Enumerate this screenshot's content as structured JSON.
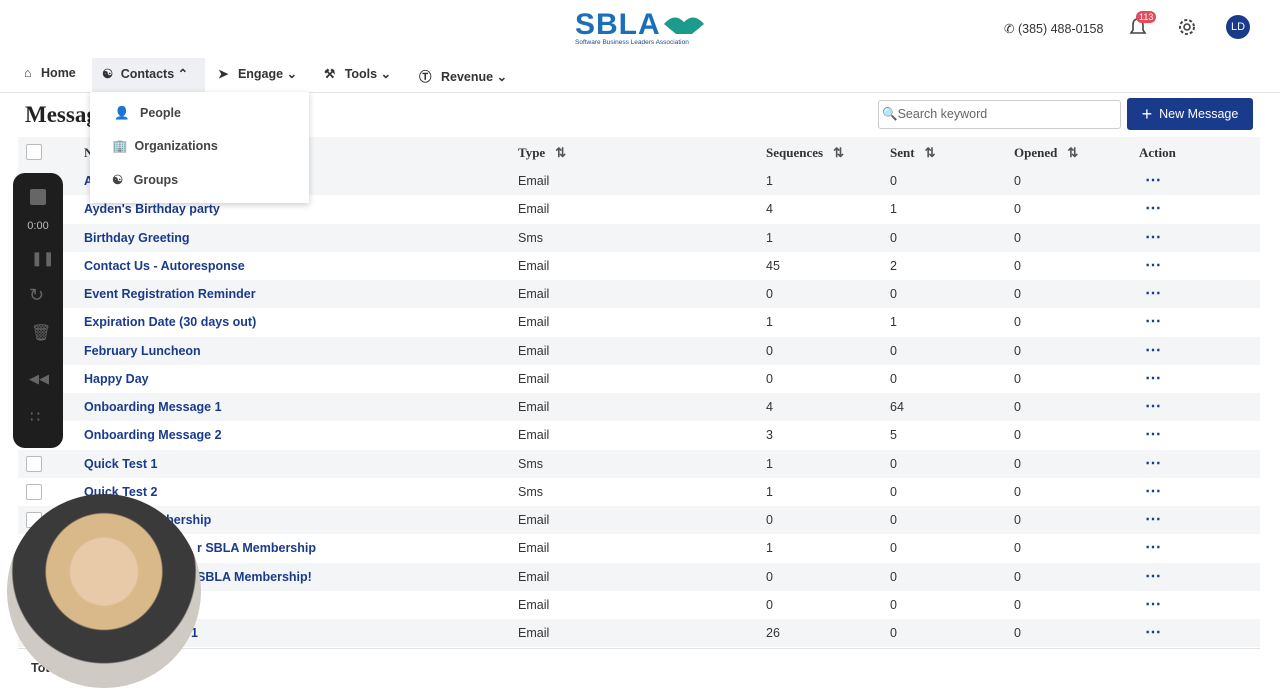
{
  "header": {
    "logo": "SBLA",
    "logo_tagline": "Software Business Leaders Association",
    "phone": "(385) 488-0158",
    "notifications": "113",
    "avatar": "LD"
  },
  "nav": [
    "Home",
    "Contacts",
    "Engage",
    "Tools",
    "Revenue"
  ],
  "dropdown": [
    "People",
    "Organizations",
    "Groups"
  ],
  "page": {
    "title": "Messages",
    "search_placeholder": "Search keyword",
    "button": "New Message"
  },
  "table": {
    "headers": [
      "Name",
      "Type",
      "Sequences",
      "Sent",
      "Opened",
      "Action"
    ],
    "rows": [
      [
        "A",
        "Email",
        "1",
        "0",
        "0"
      ],
      [
        "Ayden's Birthday party",
        "Email",
        "4",
        "1",
        "0"
      ],
      [
        "Birthday Greeting",
        "Sms",
        "1",
        "0",
        "0"
      ],
      [
        "Contact Us - Autoresponse",
        "Email",
        "45",
        "2",
        "0"
      ],
      [
        "Event Registration Reminder",
        "Email",
        "0",
        "0",
        "0"
      ],
      [
        "Expiration Date (30 days out)",
        "Email",
        "1",
        "1",
        "0"
      ],
      [
        "February Luncheon",
        "Email",
        "0",
        "0",
        "0"
      ],
      [
        "Happy Day",
        "Email",
        "0",
        "0",
        "0"
      ],
      [
        "Onboarding Message 1",
        "Email",
        "4",
        "64",
        "0"
      ],
      [
        "Onboarding Message 2",
        "Email",
        "3",
        "5",
        "0"
      ],
      [
        "Quick Test 1",
        "Sms",
        "1",
        "0",
        "0"
      ],
      [
        "Quick Test 2",
        "Sms",
        "1",
        "0",
        "0"
      ],
      [
        "mbership",
        "Email",
        "0",
        "0",
        "0"
      ],
      [
        "r SBLA Membership",
        "Email",
        "1",
        "0",
        "0"
      ],
      [
        "SBLA Membership!",
        "Email",
        "0",
        "0",
        "0"
      ],
      [
        null,
        "Email",
        "0",
        "0",
        "0"
      ],
      [
        "1",
        "Email",
        "26",
        "0",
        "0"
      ]
    ],
    "footer": "Tot"
  },
  "recorder": {
    "time": "0:00"
  }
}
